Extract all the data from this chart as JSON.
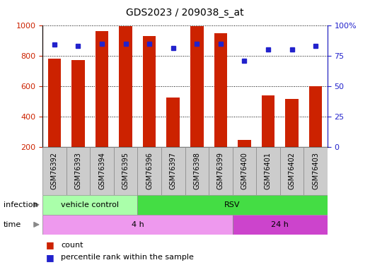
{
  "title": "GDS2023 / 209038_s_at",
  "samples": [
    "GSM76392",
    "GSM76393",
    "GSM76394",
    "GSM76395",
    "GSM76396",
    "GSM76397",
    "GSM76398",
    "GSM76399",
    "GSM76400",
    "GSM76401",
    "GSM76402",
    "GSM76403"
  ],
  "counts": [
    780,
    770,
    960,
    995,
    930,
    525,
    995,
    945,
    245,
    540,
    515,
    600
  ],
  "percentile_ranks": [
    84,
    83,
    85,
    85,
    85,
    81,
    85,
    85,
    71,
    80,
    80,
    83
  ],
  "ylim_left": [
    200,
    1000
  ],
  "ylim_right": [
    0,
    100
  ],
  "yticks_left": [
    200,
    400,
    600,
    800,
    1000
  ],
  "yticks_right": [
    0,
    25,
    50,
    75,
    100
  ],
  "bar_color": "#cc2200",
  "dot_color": "#2222cc",
  "infection_labels": [
    {
      "label": "vehicle control",
      "start": 0,
      "end": 4,
      "color": "#aaffaa"
    },
    {
      "label": "RSV",
      "start": 4,
      "end": 12,
      "color": "#44dd44"
    }
  ],
  "time_labels": [
    {
      "label": "4 h",
      "start": 0,
      "end": 8,
      "color": "#ee99ee"
    },
    {
      "label": "24 h",
      "start": 8,
      "end": 12,
      "color": "#cc44cc"
    }
  ],
  "sample_box_color": "#cccccc",
  "legend_count_color": "#cc2200",
  "legend_dot_color": "#2222cc",
  "bg_color": "#ffffff",
  "tick_label_color_left": "#cc2200",
  "tick_label_color_right": "#2222cc",
  "grid_dotted_lines": [
    800,
    600,
    400
  ],
  "bar_width": 0.55
}
